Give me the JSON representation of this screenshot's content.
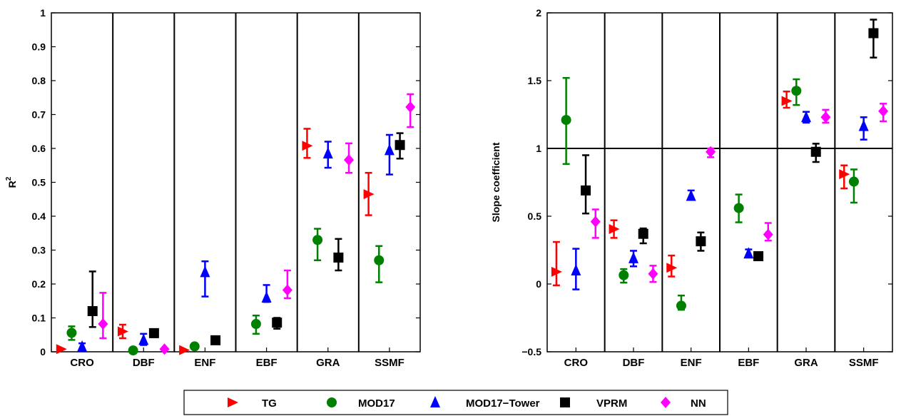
{
  "colors": {
    "TG": "#ff0000",
    "MOD17": "#008000",
    "MOD17-Tower": "#0000ff",
    "VPRM": "#000000",
    "NN": "#ff00ff"
  },
  "legend": {
    "entries": [
      "TG",
      "MOD17",
      "MOD17−Tower",
      "VPRM",
      "NN"
    ],
    "markers": [
      "triangle-right",
      "circle",
      "triangle-up",
      "square",
      "diamond"
    ],
    "placement": "bottom-center"
  },
  "chart_data": [
    {
      "type": "scatter",
      "title": "",
      "xlabel": "",
      "ylabel": "R",
      "ylabel_superscript": "2",
      "ylim": [
        0,
        1
      ],
      "yticks": [
        0,
        0.1,
        0.2,
        0.3,
        0.4,
        0.5,
        0.6,
        0.7,
        0.8,
        0.9,
        1
      ],
      "ytick_labels": [
        "0",
        "0.1",
        "0.2",
        "0.3",
        "0.4",
        "0.5",
        "0.6",
        "0.7",
        "0.8",
        "0.9",
        "1"
      ],
      "categories": [
        "CRO",
        "DBF",
        "ENF",
        "EBF",
        "GRA",
        "SSMF"
      ],
      "series": [
        {
          "name": "TG",
          "values": [
            0.008,
            0.06,
            0.005,
            null,
            0.608,
            0.465
          ],
          "lower": [
            null,
            0.04,
            null,
            null,
            0.572,
            0.403
          ],
          "upper": [
            null,
            0.08,
            null,
            null,
            0.658,
            0.528
          ]
        },
        {
          "name": "MOD17",
          "values": [
            0.056,
            0.004,
            0.016,
            0.082,
            0.33,
            0.27
          ],
          "lower": [
            0.035,
            null,
            null,
            0.053,
            0.27,
            0.205
          ],
          "upper": [
            0.075,
            null,
            null,
            0.107,
            0.363,
            0.312
          ]
        },
        {
          "name": "MOD17-Tower",
          "values": [
            0.015,
            0.035,
            0.235,
            0.16,
            0.585,
            0.595
          ],
          "lower": [
            0.005,
            0.02,
            0.163,
            0.147,
            0.543,
            0.523
          ],
          "upper": [
            0.025,
            0.053,
            0.267,
            0.197,
            0.62,
            0.64
          ]
        },
        {
          "name": "VPRM",
          "values": [
            0.12,
            0.055,
            0.034,
            0.086,
            0.278,
            0.61
          ],
          "lower": [
            0.073,
            0.043,
            null,
            0.068,
            0.24,
            0.57
          ],
          "upper": [
            0.237,
            0.065,
            null,
            0.1,
            0.333,
            0.645
          ]
        },
        {
          "name": "NN",
          "values": [
            0.082,
            0.008,
            null,
            0.182,
            0.566,
            0.722
          ],
          "lower": [
            0.04,
            null,
            null,
            0.158,
            0.528,
            0.663
          ],
          "upper": [
            0.174,
            null,
            null,
            0.24,
            0.615,
            0.76
          ]
        }
      ],
      "hline": null,
      "grid": false
    },
    {
      "type": "scatter",
      "title": "",
      "xlabel": "",
      "ylabel": "Slope coefficient",
      "ylabel_superscript": "",
      "ylim": [
        -0.5,
        2
      ],
      "yticks": [
        -0.5,
        0,
        0.5,
        1,
        1.5,
        2
      ],
      "ytick_labels": [
        "−0.5",
        "0",
        "0.5",
        "1",
        "1.5",
        "2"
      ],
      "categories": [
        "CRO",
        "DBF",
        "ENF",
        "EBF",
        "GRA",
        "SSMF"
      ],
      "series": [
        {
          "name": "TG",
          "values": [
            0.09,
            0.405,
            0.12,
            null,
            1.35,
            0.81
          ],
          "lower": [
            -0.01,
            0.34,
            0.055,
            null,
            1.3,
            0.705
          ],
          "upper": [
            0.31,
            0.47,
            0.21,
            null,
            1.42,
            0.875
          ]
        },
        {
          "name": "MOD17",
          "values": [
            1.21,
            0.065,
            -0.16,
            0.56,
            1.425,
            0.755
          ],
          "lower": [
            0.885,
            0.01,
            -0.19,
            0.455,
            1.32,
            0.6
          ],
          "upper": [
            1.52,
            0.11,
            -0.085,
            0.66,
            1.51,
            0.845
          ]
        },
        {
          "name": "MOD17-Tower",
          "values": [
            0.1,
            0.19,
            0.65,
            0.225,
            1.23,
            1.165
          ],
          "lower": [
            -0.04,
            0.13,
            0.62,
            0.2,
            1.19,
            1.065
          ],
          "upper": [
            0.26,
            0.245,
            0.69,
            0.255,
            1.27,
            1.23
          ]
        },
        {
          "name": "VPRM",
          "values": [
            0.69,
            0.37,
            0.315,
            0.205,
            0.975,
            1.85
          ],
          "lower": [
            0.52,
            0.3,
            0.245,
            0.185,
            0.9,
            1.67
          ],
          "upper": [
            0.95,
            0.41,
            0.38,
            0.225,
            1.035,
            1.95
          ]
        },
        {
          "name": "NN",
          "values": [
            0.46,
            0.075,
            0.975,
            0.365,
            1.23,
            1.275
          ],
          "lower": [
            0.34,
            0.015,
            0.935,
            0.32,
            1.19,
            1.2
          ],
          "upper": [
            0.55,
            0.135,
            1.0,
            0.45,
            1.285,
            1.33
          ]
        }
      ],
      "hline": 1,
      "grid": false
    }
  ]
}
